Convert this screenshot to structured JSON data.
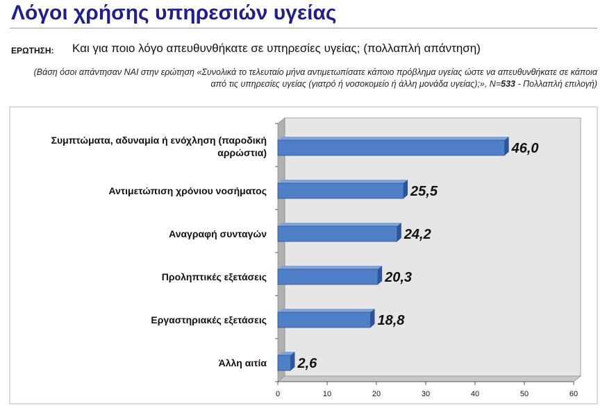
{
  "header": {
    "title": "Λόγοι χρήσης υπηρεσιών υγείας",
    "question_label": "ΕΡΩΤΗΣΗ:",
    "question_text": "Και για ποιο λόγο απευθυνθήκατε σε υπηρεσίες υγείας; (πολλαπλή απάντηση)",
    "basis_prefix": "(Βάση όσοι απάντησαν ΝΑΙ στην ερώτηση «Συνολικά το τελευταίο μήνα αντιμετωπίσατε κάποιο πρόβλημα υγείας ώστε να απευθυνθήκατε σε κάποια από τις υπηρεσίες υγείας (γιατρό ή νοσοκομείο ή άλλη μονάδα υγείας);», N=",
    "basis_n": "533",
    "basis_suffix": " - Πολλαπλή επιλογή)"
  },
  "chart_data": {
    "type": "bar",
    "orientation": "horizontal",
    "categories": [
      [
        "Συμπτώματα, αδυναμία ή ενόχληση (παροδική",
        "αρρώστια)"
      ],
      [
        "Αντιμετώπιση χρόνιου νοσήματος"
      ],
      [
        "Αναγραφή συνταγών"
      ],
      [
        "Προληπτικές εξετάσεις"
      ],
      [
        "Εργαστηριακές εξετάσεις"
      ],
      [
        "Άλλη αιτία"
      ]
    ],
    "values": [
      46.0,
      25.5,
      24.2,
      20.3,
      18.8,
      2.6
    ],
    "value_labels": [
      "46,0",
      "25,5",
      "24,2",
      "20,3",
      "18,8",
      "2,6"
    ],
    "xlim": [
      0,
      60
    ],
    "xticks": [
      0,
      10,
      20,
      30,
      40,
      50,
      60
    ],
    "grid": false,
    "colors": {
      "bar": "#4f7fc6",
      "bar_dark": "#2d5597",
      "plot_bg": "#e6e6e6",
      "wall": "#b0b0b0"
    }
  }
}
